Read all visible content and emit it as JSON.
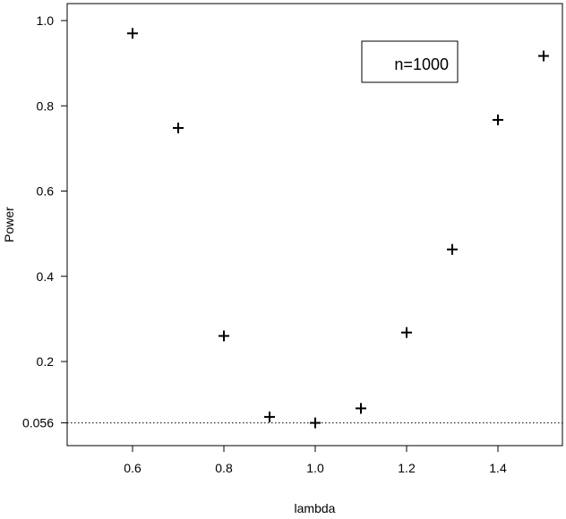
{
  "chart_data": {
    "type": "scatter",
    "title": "",
    "xlabel": "lambda",
    "ylabel": "Power",
    "xlim": [
      0.46,
      1.52
    ],
    "ylim": [
      0.05,
      1.02
    ],
    "x_ticks": [
      "0.6",
      "0.8",
      "1.0",
      "1.2",
      "1.4"
    ],
    "x_tick_values": [
      0.6,
      0.8,
      1.0,
      1.2,
      1.4
    ],
    "y_ticks": [
      "0.056",
      "0.2",
      "0.4",
      "0.6",
      "0.8",
      "1.0"
    ],
    "y_tick_values": [
      0.056,
      0.2,
      0.4,
      0.6,
      0.8,
      1.0
    ],
    "points": [
      {
        "x": 0.6,
        "y": 0.97
      },
      {
        "x": 0.7,
        "y": 0.748
      },
      {
        "x": 0.8,
        "y": 0.26
      },
      {
        "x": 0.9,
        "y": 0.07
      },
      {
        "x": 1.0,
        "y": 0.056
      },
      {
        "x": 1.1,
        "y": 0.09
      },
      {
        "x": 1.2,
        "y": 0.268
      },
      {
        "x": 1.3,
        "y": 0.463
      },
      {
        "x": 1.4,
        "y": 0.767
      },
      {
        "x": 1.5,
        "y": 0.917
      }
    ],
    "reference_line": {
      "y": 0.056,
      "style": "dotted"
    },
    "legend_text": "n=1000",
    "legend_position": "top-right",
    "marker": "plus",
    "grid": false
  }
}
